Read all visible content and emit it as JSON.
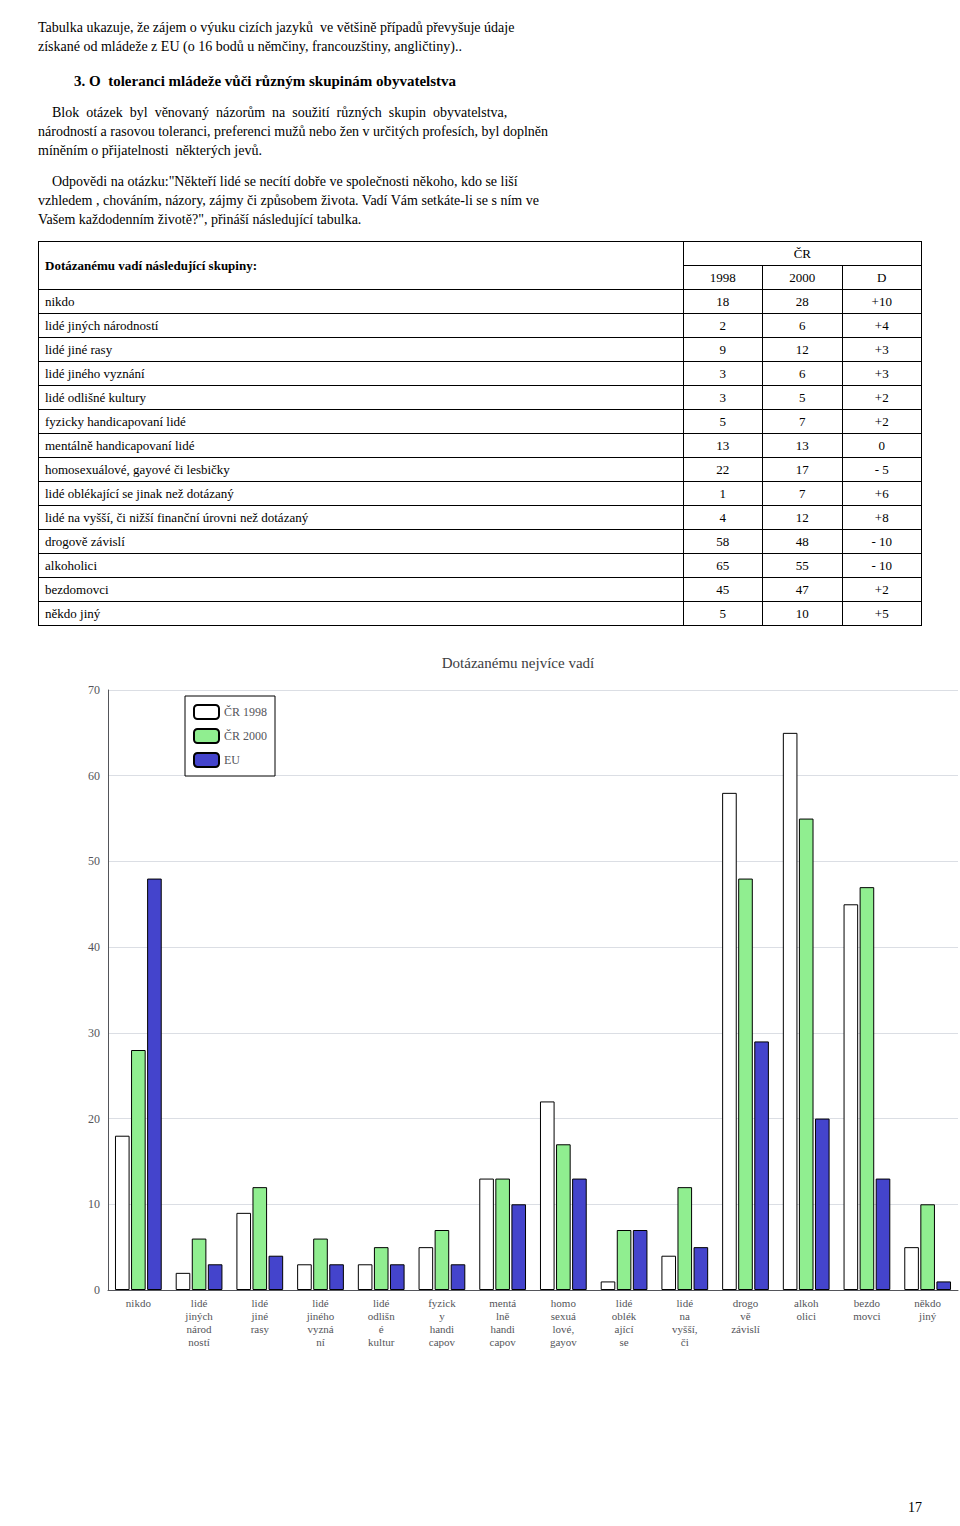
{
  "intro_text": "Tabulka ukazuje, že zájem o výuku cizích jazyků  ve většině případů převyšuje údaje\nzískané od mládeže z EU (o 16 bodů u němčiny, francouzštiny, angličtiny)..",
  "section_title": "3. O  toleranci mládeže vůči různým skupinám obyvatelstva",
  "body_text": "    Blok  otázek  byl  věnovaný  názorům  na  soužití  různých  skupin  obyvatelstva,\nnárodností a rasovou toleranci, preferenci mužů nebo žen v určitých profesích, byl doplněn\nmíněním o přijatelnosti  některých jevů.",
  "question_text": "    Odpovědi na otázku:\"Někteří lidé se necítí dobře ve společnosti někoho, kdo se liší\nvzhledem , chováním, názory, zájmy či způsobem života. Vadí Vám setkáte-li se s ním ve\nVašem každodenním životě?\", přináší následující tabulka.",
  "table": {
    "header_left": "Dotázanému vadí následující skupiny:",
    "header_group": "ČR",
    "header_years": [
      "1998",
      "2000",
      "D"
    ],
    "rows": [
      [
        "nikdo",
        "18",
        "28",
        "+10"
      ],
      [
        "lidé jiných národností",
        "2",
        "6",
        "+4"
      ],
      [
        "lidé jiné rasy",
        "9",
        "12",
        "+3"
      ],
      [
        "lidé jiného vyznání",
        "3",
        "6",
        "+3"
      ],
      [
        "lidé odlišné kultury",
        "3",
        "5",
        "+2"
      ],
      [
        "fyzicky handicapovaní lidé",
        "5",
        "7",
        "+2"
      ],
      [
        "mentálně handicapovaní lidé",
        "13",
        "13",
        "0"
      ],
      [
        "homosexuálové, gayové či lesbičky",
        "22",
        "17",
        "- 5"
      ],
      [
        "lidé oblékající se jinak než dotázaný",
        "1",
        "7",
        "+6"
      ],
      [
        "lidé na vyšší, či nižší finanční úrovni než dotázaný",
        "4",
        "12",
        "+8"
      ],
      [
        "drogově závislí",
        "58",
        "48",
        "- 10"
      ],
      [
        "alkoholici",
        "65",
        "55",
        "- 10"
      ],
      [
        "bezdomovci",
        "45",
        "47",
        "+2"
      ],
      [
        "někdo jiný",
        "5",
        "10",
        "+5"
      ]
    ]
  },
  "page_number": "17",
  "chart_data": {
    "type": "bar",
    "title": "Dotázanému nejvíce vadí",
    "categories": [
      "nikdo",
      "lidé\njiných\nnárod\nností",
      "lidé\njiné\nrasy",
      "lidé\njiného\nvyzná\nní",
      "lidé\nodlišn\né\nkultur",
      "fyzick\ny\nhandi\ncapov",
      "mentá\nlně\nhandi\ncapov",
      "homo\nsexuá\nlové,\ngayov",
      "lidé\noblék\nající\nse",
      "lidé\nna\nvyšší,\nči",
      "drogo\nvě\nzávislí",
      "alkoh\nolici",
      "bezdo\nmovci",
      "někdo\njiný"
    ],
    "series": [
      {
        "name": "ČR 1998",
        "color": "#ffffff",
        "values": [
          18,
          2,
          9,
          3,
          3,
          5,
          13,
          22,
          1,
          4,
          58,
          65,
          45,
          5
        ]
      },
      {
        "name": "ČR 2000",
        "color": "#90EE90",
        "values": [
          28,
          6,
          12,
          6,
          5,
          7,
          13,
          17,
          7,
          12,
          48,
          55,
          47,
          10
        ]
      },
      {
        "name": "EU",
        "color": "#4444cc",
        "values": [
          48,
          3,
          4,
          3,
          3,
          3,
          10,
          13,
          7,
          5,
          29,
          20,
          13,
          1
        ]
      }
    ],
    "ylim": [
      0,
      70
    ],
    "yticks": [
      0,
      10,
      20,
      30,
      40,
      50,
      60,
      70
    ],
    "grid": true,
    "legend": "upper left"
  }
}
